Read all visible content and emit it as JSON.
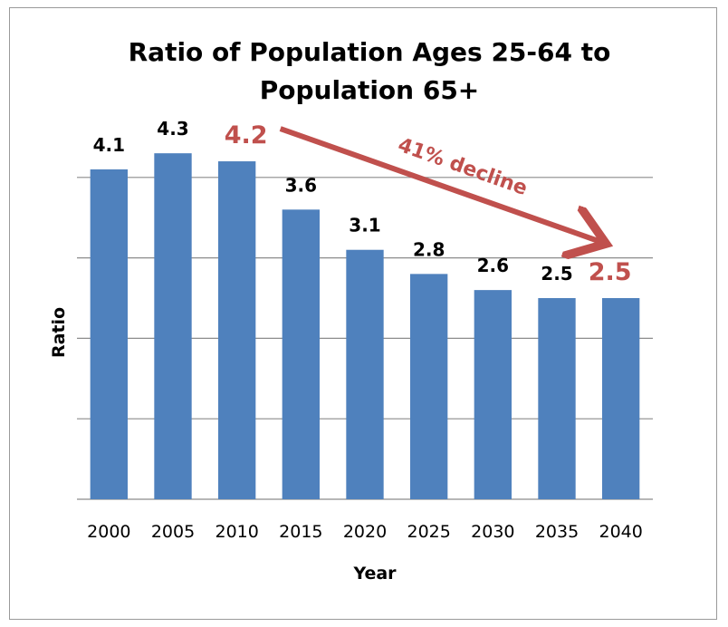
{
  "chart_data": {
    "type": "bar",
    "title": "Ratio of Population Ages 25-64 to Population 65+",
    "title_lines": [
      "Ratio of Population Ages 25-64 to",
      "Population 65+"
    ],
    "xlabel": "Year",
    "ylabel": "Ratio",
    "categories": [
      "2000",
      "2005",
      "2010",
      "2015",
      "2020",
      "2025",
      "2030",
      "2035",
      "2040"
    ],
    "values": [
      4.1,
      4.3,
      4.2,
      3.6,
      3.1,
      2.8,
      2.6,
      2.5,
      2.5
    ],
    "data_labels": [
      "4.1",
      "4.3",
      "4.2",
      "3.6",
      "3.1",
      "2.8",
      "2.6",
      "2.5",
      "2.5"
    ],
    "highlighted_categories": [
      "2010",
      "2040"
    ],
    "ylim": [
      0,
      5
    ],
    "grid": true,
    "y_tick_labels_shown": false,
    "legend": "none",
    "bar_color": "#4F81BD",
    "highlight_color": "#C0504D",
    "annotation": {
      "text": "41% decline",
      "from_category": "2010",
      "to_category": "2040",
      "color": "#C0504D"
    }
  }
}
